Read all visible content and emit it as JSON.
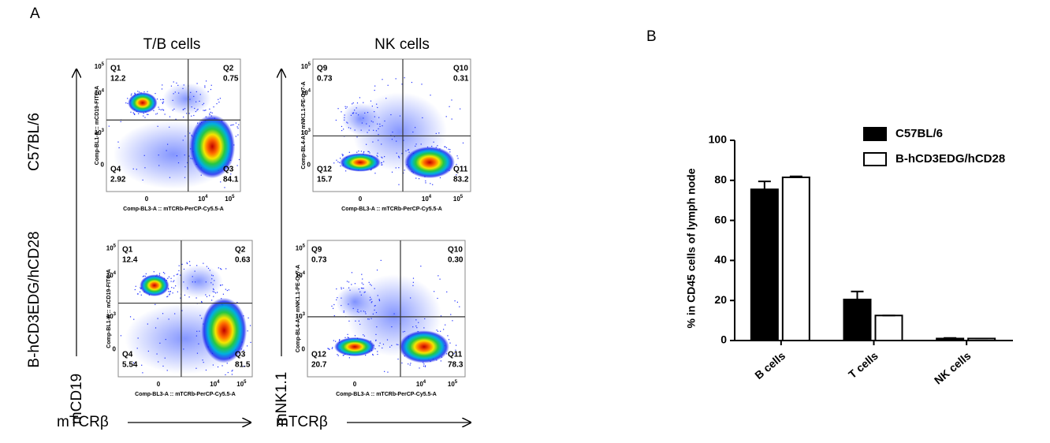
{
  "panel_a": {
    "label": "A",
    "columns": [
      "T/B cells",
      "NK cells"
    ],
    "rows": [
      "C57BL/6",
      "B-hCD3EDG/hCD28"
    ],
    "y_markers": [
      "mCD19",
      "mNK1.1"
    ],
    "x_markers": [
      "mTCRβ",
      "mTCRβ"
    ],
    "flow_yticks": [
      {
        "base": "10",
        "exp": "5"
      },
      {
        "base": "10",
        "exp": "4"
      },
      {
        "base": "10",
        "exp": "3"
      },
      {
        "base": "0"
      }
    ],
    "flow_xticks": [
      {
        "base": "0"
      },
      {
        "base": "10",
        "exp": "4"
      },
      {
        "base": "10",
        "exp": "5"
      }
    ],
    "plots": [
      {
        "y_param": "Comp-BL1-A :: mCD19-FITC-A",
        "x_param": "Comp-BL3-A :: mTCRb-PerCP-Cy5.5-A",
        "quadrants": [
          {
            "name": "Q1",
            "value": "12.2"
          },
          {
            "name": "Q2",
            "value": "0.75"
          },
          {
            "name": "Q3",
            "value": "84.1"
          },
          {
            "name": "Q4",
            "value": "2.92"
          }
        ]
      },
      {
        "y_param": "Comp-BL4-A :: mNK1.1-PE-Cy7-A",
        "x_param": "Comp-BL3-A :: mTCRb-PerCP-Cy5.5-A",
        "quadrants": [
          {
            "name": "Q9",
            "value": "0.73"
          },
          {
            "name": "Q10",
            "value": "0.31"
          },
          {
            "name": "Q11",
            "value": "83.2"
          },
          {
            "name": "Q12",
            "value": "15.7"
          }
        ]
      },
      {
        "y_param": "Comp-BL1-A :: mCD19-FITC-A",
        "x_param": "Comp-BL3-A :: mTCRb-PerCP-Cy5.5-A",
        "quadrants": [
          {
            "name": "Q1",
            "value": "12.4"
          },
          {
            "name": "Q2",
            "value": "0.63"
          },
          {
            "name": "Q3",
            "value": "81.5"
          },
          {
            "name": "Q4",
            "value": "5.54"
          }
        ]
      },
      {
        "y_param": "Comp-BL4-A :: mNK1.1-PE-Cy7-A",
        "x_param": "Comp-BL3-A :: mTCRb-PerCP-Cy5.5-A",
        "quadrants": [
          {
            "name": "Q9",
            "value": "0.73"
          },
          {
            "name": "Q10",
            "value": "0.30"
          },
          {
            "name": "Q11",
            "value": "78.3"
          },
          {
            "name": "Q12",
            "value": "20.7"
          }
        ]
      }
    ]
  },
  "panel_b": {
    "label": "B"
  },
  "chart_data": {
    "type": "bar",
    "y_label": "% in CD45 cells of lymph node",
    "categories": [
      "B cells",
      "T cells",
      "NK cells"
    ],
    "series": [
      {
        "name": "C57BL/6",
        "color": "#000000",
        "values": [
          75.5,
          20.5,
          1
        ],
        "errors": [
          4,
          4,
          0.3
        ]
      },
      {
        "name": "B-hCD3EDG/hCD28",
        "color": "#ffffff",
        "values": [
          81.5,
          12.5,
          1
        ],
        "errors": [
          0.5,
          0,
          0
        ]
      }
    ],
    "ylim": [
      0,
      100
    ],
    "yticks": [
      0,
      20,
      40,
      60,
      80,
      100
    ]
  }
}
